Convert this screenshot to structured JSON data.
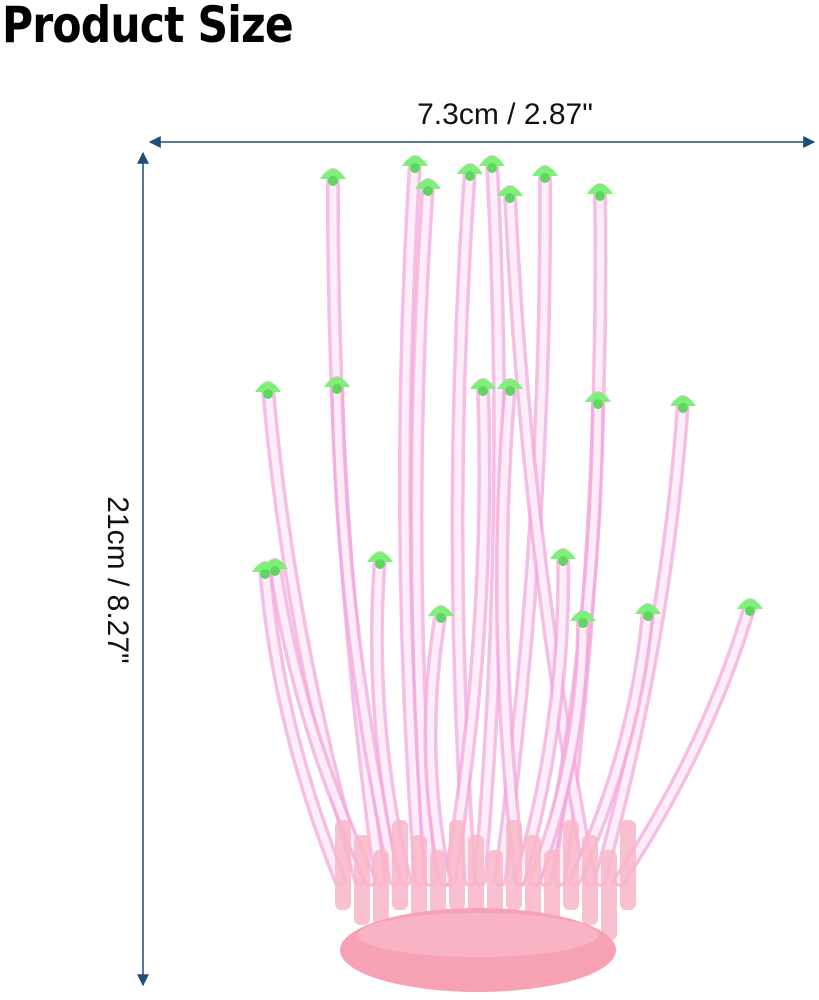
{
  "header": {
    "title": "Product Size"
  },
  "dimensions": {
    "width": "7.3cm / 2.87\"",
    "height": "21cm / 8.27\""
  }
}
